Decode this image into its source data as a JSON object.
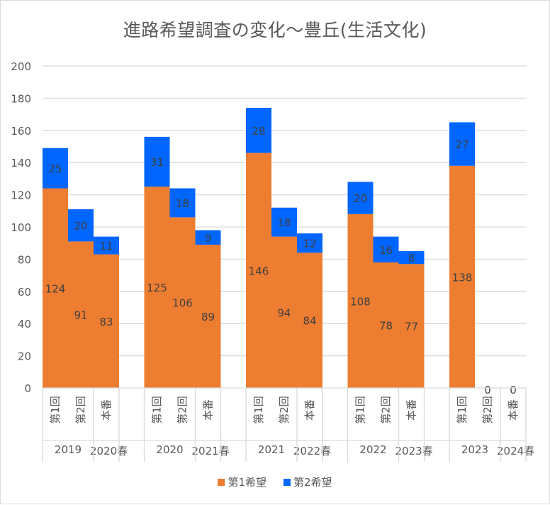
{
  "chart_data": {
    "type": "bar",
    "stacked": true,
    "title": "進路希望調査の変化～豊丘(生活文化)",
    "xlabel": "",
    "ylabel": "",
    "ylim": [
      0,
      200
    ],
    "yticks": [
      0,
      20,
      40,
      60,
      80,
      100,
      120,
      140,
      160,
      180,
      200
    ],
    "grid": true,
    "legend_position": "bottom",
    "groups": [
      {
        "year": "2019",
        "spring": "2020春"
      },
      {
        "year": "2020",
        "spring": "2021春"
      },
      {
        "year": "2021",
        "spring": "2022春"
      },
      {
        "year": "2022",
        "spring": "2023春"
      },
      {
        "year": "2023",
        "spring": "2024春"
      }
    ],
    "subcategories": [
      "第1回",
      "第2回",
      "本番"
    ],
    "series": [
      {
        "name": "第1希望",
        "color": "#ED7D31",
        "values": [
          [
            124,
            91,
            83
          ],
          [
            125,
            106,
            89
          ],
          [
            146,
            94,
            84
          ],
          [
            108,
            78,
            77
          ],
          [
            138,
            0,
            0
          ]
        ]
      },
      {
        "name": "第2希望",
        "color": "#0066FF",
        "values": [
          [
            25,
            20,
            11
          ],
          [
            31,
            18,
            9
          ],
          [
            28,
            18,
            12
          ],
          [
            20,
            16,
            8
          ],
          [
            27,
            0,
            0
          ]
        ]
      }
    ],
    "labels_shown": {
      "第1希望": [
        [
          true,
          true,
          true
        ],
        [
          true,
          true,
          true
        ],
        [
          true,
          true,
          true
        ],
        [
          true,
          true,
          true
        ],
        [
          true,
          false,
          false
        ]
      ],
      "第2希望": [
        [
          true,
          true,
          true
        ],
        [
          true,
          true,
          true
        ],
        [
          true,
          true,
          true
        ],
        [
          true,
          true,
          true
        ],
        [
          true,
          true,
          true
        ]
      ]
    }
  },
  "legend": [
    {
      "label": "第1希望",
      "color": "#ED7D31"
    },
    {
      "label": "第2希望",
      "color": "#0066FF"
    }
  ]
}
